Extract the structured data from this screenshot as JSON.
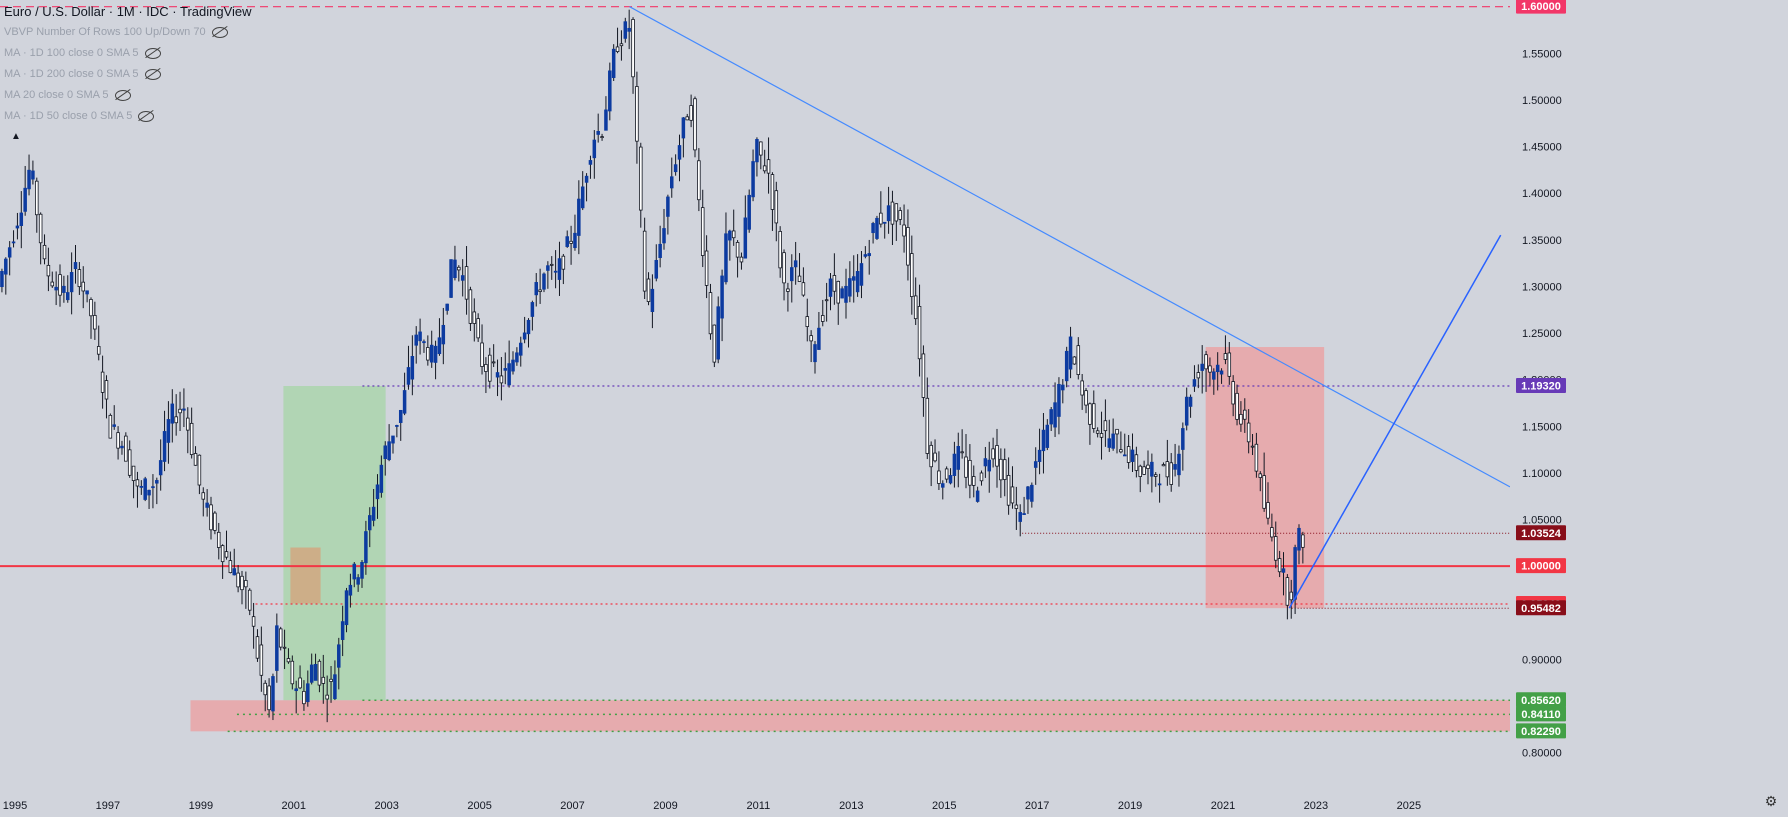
{
  "header": {
    "title": "Euro / U.S. Dollar · 1M · IDC · TradingView",
    "indicators": [
      {
        "label": "VBVP Number Of Rows 100 Up/Down 70",
        "icon": "eye-off-icon"
      },
      {
        "label": "MA · 1D 100 close 0 SMA 5",
        "icon": "eye-off-icon"
      },
      {
        "label": "MA · 1D 200 close 0 SMA 5",
        "icon": "eye-off-icon"
      },
      {
        "label": "MA 20 close 0 SMA 5",
        "icon": "eye-off-icon"
      },
      {
        "label": "MA · 1D 50 close 0 SMA 5",
        "icon": "eye-off-icon"
      }
    ]
  },
  "chart_data": {
    "type": "candlestick",
    "x_ticks": [
      "1995",
      "1997",
      "1999",
      "2001",
      "2003",
      "2005",
      "2007",
      "2009",
      "2011",
      "2013",
      "2015",
      "2017",
      "2019",
      "2021",
      "2023",
      "2025"
    ],
    "x_range": [
      1995,
      2027.5
    ],
    "y_ticks": [
      "1.55000",
      "1.50000",
      "1.45000",
      "1.40000",
      "1.35000",
      "1.30000",
      "1.25000",
      "1.20000",
      "1.15000",
      "1.10000",
      "1.05000",
      "0.90000",
      "0.80000"
    ],
    "y_range": [
      0.79,
      1.605
    ],
    "series": [
      {
        "points": [
          [
            1995,
            1.3
          ],
          [
            1995.4,
            1.37
          ],
          [
            1995.7,
            1.43
          ],
          [
            1996,
            1.32
          ],
          [
            1996.4,
            1.29
          ],
          [
            1996.7,
            1.32
          ],
          [
            1997,
            1.27
          ],
          [
            1997.4,
            1.15
          ],
          [
            1997.7,
            1.13
          ],
          [
            1998,
            1.08
          ],
          [
            1998.4,
            1.09
          ],
          [
            1998.7,
            1.16
          ],
          [
            1999,
            1.17
          ],
          [
            1999.4,
            1.07
          ],
          [
            1999.8,
            1.02
          ],
          [
            2000,
            1.0
          ],
          [
            2000.4,
            0.96
          ],
          [
            2000.7,
            0.87
          ],
          [
            2000.85,
            0.84
          ],
          [
            2001,
            0.93
          ],
          [
            2001.3,
            0.88
          ],
          [
            2001.6,
            0.86
          ],
          [
            2001.8,
            0.9
          ],
          [
            2002,
            0.87
          ],
          [
            2002.2,
            0.87
          ],
          [
            2002.5,
            0.98
          ],
          [
            2002.8,
            1.0
          ],
          [
            2003,
            1.05
          ],
          [
            2003.3,
            1.12
          ],
          [
            2003.7,
            1.17
          ],
          [
            2004,
            1.25
          ],
          [
            2004.4,
            1.22
          ],
          [
            2004.8,
            1.33
          ],
          [
            2005,
            1.31
          ],
          [
            2005.4,
            1.22
          ],
          [
            2005.8,
            1.2
          ],
          [
            2006,
            1.21
          ],
          [
            2006.4,
            1.27
          ],
          [
            2006.8,
            1.32
          ],
          [
            2007,
            1.31
          ],
          [
            2007.4,
            1.36
          ],
          [
            2007.8,
            1.46
          ],
          [
            2008,
            1.47
          ],
          [
            2008.3,
            1.56
          ],
          [
            2008.6,
            1.58
          ],
          [
            2008.8,
            1.4
          ],
          [
            2008.95,
            1.27
          ],
          [
            2009.2,
            1.33
          ],
          [
            2009.5,
            1.42
          ],
          [
            2009.9,
            1.5
          ],
          [
            2010.1,
            1.38
          ],
          [
            2010.4,
            1.22
          ],
          [
            2010.7,
            1.36
          ],
          [
            2011,
            1.33
          ],
          [
            2011.3,
            1.45
          ],
          [
            2011.6,
            1.42
          ],
          [
            2011.9,
            1.3
          ],
          [
            2012.2,
            1.32
          ],
          [
            2012.5,
            1.23
          ],
          [
            2012.9,
            1.3
          ],
          [
            2013.2,
            1.29
          ],
          [
            2013.5,
            1.31
          ],
          [
            2013.9,
            1.37
          ],
          [
            2014.2,
            1.38
          ],
          [
            2014.5,
            1.36
          ],
          [
            2014.8,
            1.25
          ],
          [
            2015,
            1.13
          ],
          [
            2015.3,
            1.09
          ],
          [
            2015.7,
            1.12
          ],
          [
            2016,
            1.08
          ],
          [
            2016.4,
            1.13
          ],
          [
            2016.8,
            1.07
          ],
          [
            2017,
            1.05
          ],
          [
            2017.4,
            1.12
          ],
          [
            2017.8,
            1.18
          ],
          [
            2018.1,
            1.24
          ],
          [
            2018.4,
            1.17
          ],
          [
            2018.8,
            1.14
          ],
          [
            2019.2,
            1.13
          ],
          [
            2019.6,
            1.1
          ],
          [
            2020,
            1.1
          ],
          [
            2020.3,
            1.1
          ],
          [
            2020.6,
            1.18
          ],
          [
            2020.9,
            1.22
          ],
          [
            2021.1,
            1.21
          ],
          [
            2021.4,
            1.22
          ],
          [
            2021.7,
            1.16
          ],
          [
            2022,
            1.13
          ],
          [
            2022.3,
            1.05
          ],
          [
            2022.6,
            1.0
          ],
          [
            2022.8,
            0.96
          ],
          [
            2022.95,
            1.03
          ]
        ]
      }
    ],
    "price_labels": [
      {
        "text": "1.60000",
        "value": 1.6,
        "color": "#f23668"
      },
      {
        "text": "1.19320",
        "value": 1.1932,
        "color": "#673ab7"
      },
      {
        "text": "1.03524",
        "value": 1.03524,
        "color": "#880e1a"
      },
      {
        "text": "1.00000",
        "value": 1.0,
        "color": "#f23645"
      },
      {
        "text": "0.95940",
        "value": 0.9594,
        "color": "#f23645"
      },
      {
        "text": "0.95482",
        "value": 0.95482,
        "color": "#880e1a"
      },
      {
        "text": "0.85620",
        "value": 0.8562,
        "color": "#43a047"
      },
      {
        "text": "0.84110",
        "value": 0.8411,
        "color": "#43a047"
      },
      {
        "text": "0.82290",
        "value": 0.8229,
        "color": "#43a047"
      }
    ]
  },
  "toolbar": {
    "settings_icon": "gear-icon",
    "collapse_icon": "chevron-up-icon"
  }
}
